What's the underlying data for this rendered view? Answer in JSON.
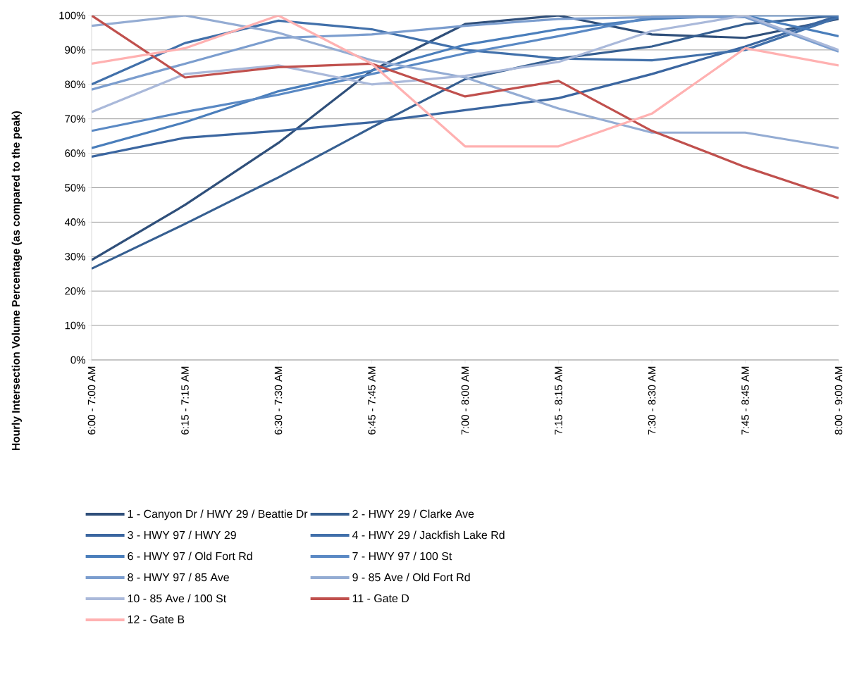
{
  "chart_data": {
    "type": "line",
    "ylabel": "Hourly Intersection Volume Percentage (as compared to the peak)",
    "categories": [
      "6:00 - 7:00 AM",
      "6:15 - 7:15 AM",
      "6:30 - 7:30 AM",
      "6:45 - 7:45 AM",
      "7:00 - 8:00 AM",
      "7:15 - 8:15 AM",
      "7:30 - 8:30 AM",
      "7:45 - 8:45 AM",
      "8:00 - 9:00 AM"
    ],
    "ylim": [
      0,
      100
    ],
    "yticks": [
      {
        "value": 0,
        "label": "0%"
      },
      {
        "value": 10,
        "label": "10%"
      },
      {
        "value": 20,
        "label": "20%"
      },
      {
        "value": 30,
        "label": "30%"
      },
      {
        "value": 40,
        "label": "40%"
      },
      {
        "value": 50,
        "label": "50%"
      },
      {
        "value": 60,
        "label": "60%"
      },
      {
        "value": 70,
        "label": "70%"
      },
      {
        "value": 80,
        "label": "80%"
      },
      {
        "value": 90,
        "label": "90%"
      },
      {
        "value": 100,
        "label": "100%"
      }
    ],
    "grid": "y",
    "legend": "bottom",
    "marker": "none",
    "line_style": "solid",
    "series": [
      {
        "name": "1 - Canyon Dr / HWY 29 / Beattie Dr",
        "color": "#2f4f7a",
        "values": [
          29,
          45,
          63,
          84,
          97.5,
          100,
          94.5,
          93.5,
          99
        ]
      },
      {
        "name": "2 - HWY 29 / Clarke Ave",
        "color": "#365f91",
        "values": [
          26.5,
          39.5,
          53,
          67.5,
          81.5,
          87.5,
          91,
          97.5,
          100
        ]
      },
      {
        "name": "3 - HWY 97 / HWY 29",
        "color": "#3b66a0",
        "values": [
          59,
          64.5,
          66.5,
          69,
          72.5,
          76,
          83,
          91,
          100
        ]
      },
      {
        "name": "4 - HWY 29 / Jackfish Lake Rd",
        "color": "#4170aa",
        "values": [
          80,
          92,
          98.5,
          96,
          90,
          87.5,
          87,
          90,
          99.5
        ]
      },
      {
        "name": "6 - HWY 97 / Old Fort Rd",
        "color": "#4a7ebb",
        "values": [
          61.5,
          69,
          78,
          84,
          91.5,
          96,
          99,
          100,
          94
        ]
      },
      {
        "name": "7 - HWY 97 / 100 St",
        "color": "#5a89c4",
        "values": [
          66.5,
          72,
          77,
          83,
          89,
          94,
          99.5,
          100,
          100
        ]
      },
      {
        "name": "8 - HWY 97 / 85 Ave",
        "color": "#7b9dce",
        "values": [
          78.5,
          86,
          93.5,
          94.5,
          97,
          99,
          99.5,
          99.5,
          89.5
        ]
      },
      {
        "name": "9 - 85 Ave / Old Fort Rd",
        "color": "#94acd3",
        "values": [
          97,
          100,
          95,
          87,
          82,
          73,
          66,
          66,
          61.5
        ]
      },
      {
        "name": "10 - 85 Ave / 100 St",
        "color": "#aab9da",
        "values": [
          72,
          83,
          85.5,
          80,
          82.5,
          86.5,
          95.5,
          100,
          90
        ]
      },
      {
        "name": "11 - Gate D",
        "color": "#c0504d",
        "values": [
          100,
          82,
          85,
          86,
          76.5,
          81,
          66.5,
          56,
          47
        ]
      },
      {
        "name": "12 - Gate B",
        "color": "#ffb1b1",
        "values": [
          86,
          90.5,
          100,
          86,
          62,
          62,
          71.5,
          90.5,
          85.5
        ]
      }
    ]
  }
}
